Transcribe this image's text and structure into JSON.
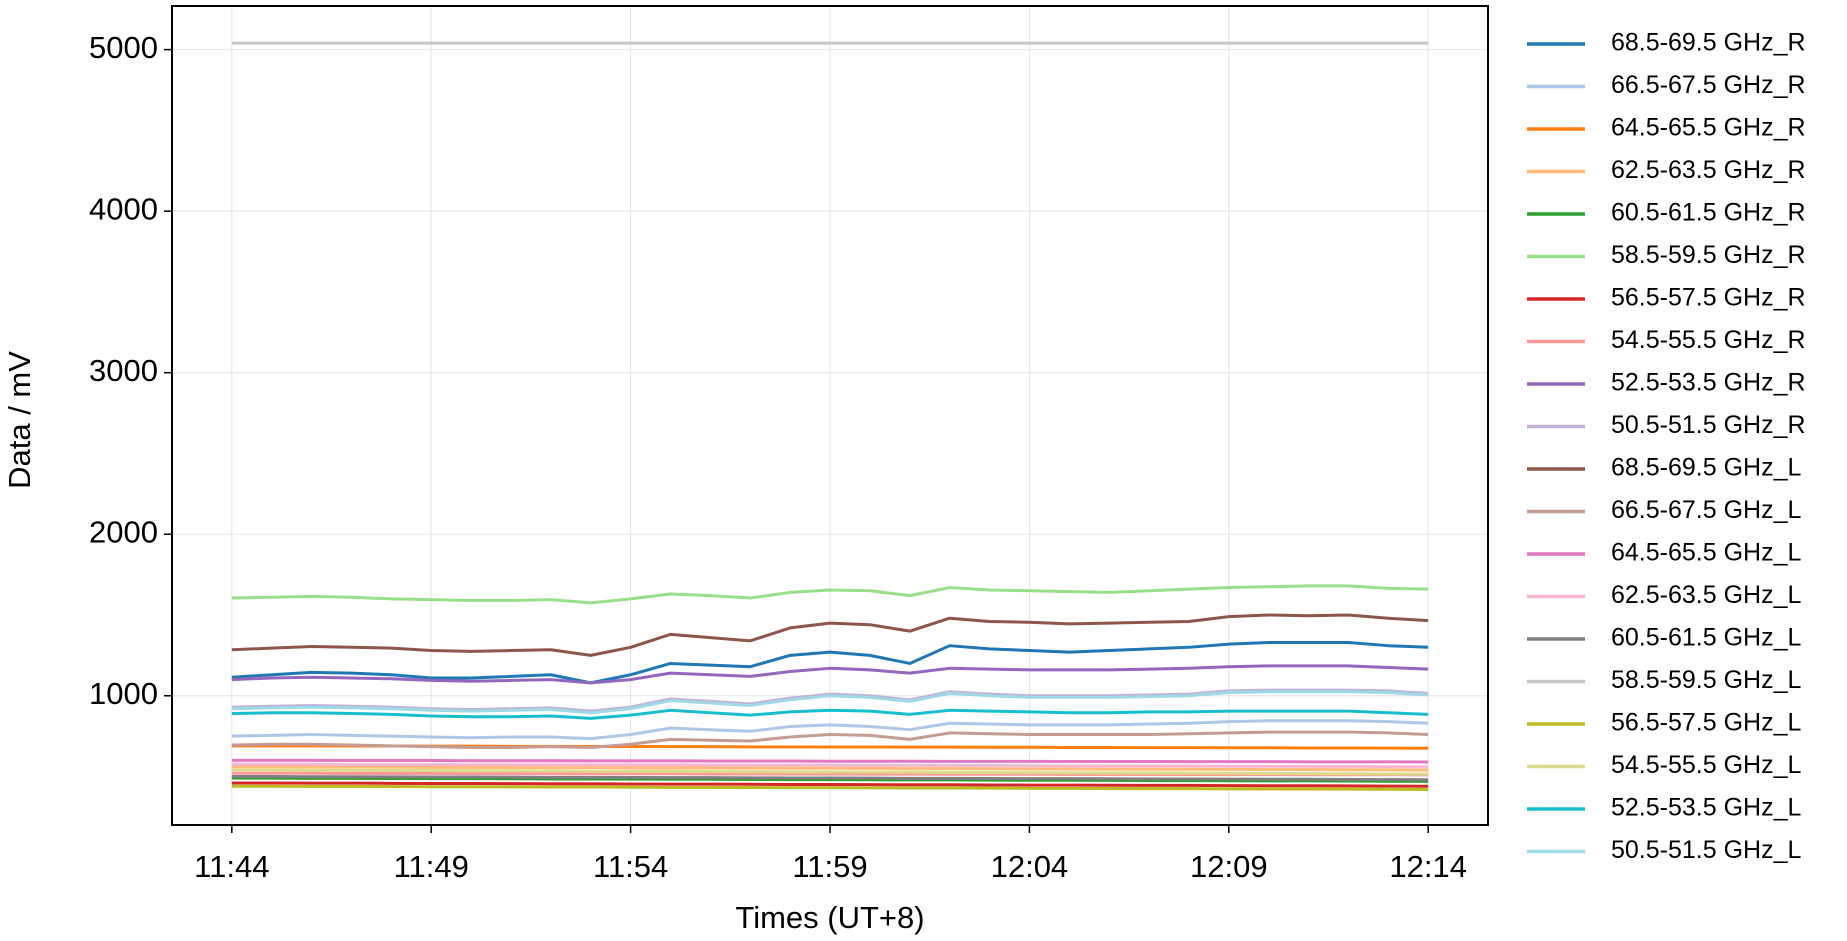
{
  "chart_data": {
    "type": "line",
    "x_label": "Times (UT+8)",
    "y_label": "Data / mV",
    "x": [
      "11:44",
      null,
      null,
      null,
      null,
      "11:49",
      null,
      null,
      null,
      null,
      "11:54",
      null,
      null,
      null,
      null,
      "11:59",
      null,
      null,
      null,
      null,
      "12:04",
      null,
      null,
      null,
      null,
      "12:09",
      null,
      null,
      null,
      null,
      "12:14"
    ],
    "ylim": [
      200,
      5270
    ],
    "yticks": [
      1000,
      2000,
      3000,
      4000,
      5000
    ],
    "grid": true,
    "legend": "outside right",
    "series": [
      {
        "name": "68.5-69.5 GHz_R",
        "color": "#1f77b4",
        "values": [
          1115,
          1130,
          1145,
          1140,
          1130,
          1110,
          1110,
          1120,
          1130,
          1080,
          1130,
          1200,
          1190,
          1180,
          1250,
          1270,
          1250,
          1200,
          1310,
          1290,
          1280,
          1270,
          1280,
          1290,
          1300,
          1320,
          1330,
          1330,
          1330,
          1310,
          1300
        ]
      },
      {
        "name": "66.5-67.5 GHz_R",
        "color": "#aec7e8",
        "values": [
          750,
          755,
          760,
          755,
          750,
          745,
          740,
          745,
          745,
          735,
          760,
          800,
          790,
          780,
          810,
          820,
          810,
          790,
          830,
          825,
          820,
          820,
          820,
          825,
          830,
          840,
          845,
          845,
          845,
          840,
          830
        ]
      },
      {
        "name": "64.5-65.5 GHz_R",
        "color": "#ff7f0e",
        "values": [
          690,
          690,
          690,
          689,
          689,
          688,
          688,
          687,
          687,
          686,
          686,
          685,
          685,
          684,
          684,
          683,
          683,
          682,
          682,
          681,
          681,
          680,
          680,
          679,
          679,
          678,
          678,
          677,
          677,
          676,
          675
        ]
      },
      {
        "name": "62.5-63.5 GHz_R",
        "color": "#ffbb78",
        "values": [
          560,
          560,
          559,
          559,
          558,
          557,
          557,
          556,
          555,
          555,
          554,
          553,
          553,
          552,
          551,
          551,
          550,
          549,
          549,
          548,
          547,
          547,
          546,
          545,
          545,
          544,
          543,
          543,
          542,
          541,
          540
        ]
      },
      {
        "name": "60.5-61.5 GHz_R",
        "color": "#2ca02c",
        "values": [
          490,
          490,
          489,
          489,
          488,
          487,
          487,
          486,
          485,
          485,
          484,
          483,
          483,
          482,
          481,
          481,
          480,
          479,
          479,
          478,
          477,
          477,
          476,
          475,
          475,
          474,
          473,
          473,
          472,
          471,
          470
        ]
      },
      {
        "name": "58.5-59.5 GHz_R",
        "color": "#98df8a",
        "values": [
          1605,
          1610,
          1615,
          1610,
          1600,
          1595,
          1590,
          1590,
          1595,
          1575,
          1600,
          1630,
          1620,
          1605,
          1640,
          1655,
          1650,
          1620,
          1670,
          1655,
          1650,
          1645,
          1640,
          1650,
          1660,
          1670,
          1675,
          1680,
          1680,
          1665,
          1660
        ]
      },
      {
        "name": "56.5-57.5 GHz_R",
        "color": "#d62728",
        "values": [
          460,
          460,
          459,
          459,
          458,
          457,
          457,
          456,
          455,
          455,
          454,
          453,
          453,
          452,
          451,
          451,
          450,
          449,
          449,
          448,
          447,
          447,
          446,
          445,
          445,
          444,
          443,
          443,
          442,
          441,
          440
        ]
      },
      {
        "name": "54.5-55.5 GHz_R",
        "color": "#ff9896",
        "values": [
          520,
          520,
          520,
          519,
          519,
          519,
          518,
          518,
          518,
          517,
          517,
          517,
          516,
          516,
          516,
          515,
          515,
          515,
          514,
          514,
          514,
          513,
          513,
          513,
          512,
          512,
          512,
          511,
          511,
          511,
          510
        ]
      },
      {
        "name": "52.5-53.5 GHz_R",
        "color": "#9467bd",
        "values": [
          1100,
          1110,
          1115,
          1110,
          1105,
          1095,
          1090,
          1095,
          1100,
          1080,
          1100,
          1140,
          1130,
          1120,
          1150,
          1170,
          1160,
          1140,
          1170,
          1165,
          1160,
          1160,
          1160,
          1165,
          1170,
          1180,
          1185,
          1185,
          1185,
          1175,
          1165
        ]
      },
      {
        "name": "50.5-51.5 GHz_R",
        "color": "#c5b0d5",
        "values": [
          930,
          935,
          940,
          935,
          930,
          920,
          915,
          920,
          925,
          905,
          930,
          980,
          965,
          950,
          985,
          1010,
          1000,
          975,
          1025,
          1010,
          1000,
          1000,
          1000,
          1005,
          1010,
          1030,
          1035,
          1035,
          1035,
          1030,
          1015
        ]
      },
      {
        "name": "68.5-69.5 GHz_L",
        "color": "#8c564b",
        "values": [
          1285,
          1295,
          1305,
          1300,
          1295,
          1280,
          1275,
          1280,
          1285,
          1250,
          1300,
          1380,
          1360,
          1340,
          1420,
          1450,
          1440,
          1400,
          1480,
          1460,
          1455,
          1445,
          1450,
          1455,
          1460,
          1490,
          1500,
          1495,
          1500,
          1480,
          1465
        ]
      },
      {
        "name": "66.5-67.5 GHz_L",
        "color": "#c49c94",
        "values": [
          695,
          700,
          700,
          695,
          690,
          685,
          680,
          680,
          685,
          680,
          700,
          730,
          725,
          720,
          745,
          760,
          755,
          730,
          770,
          765,
          760,
          760,
          760,
          760,
          765,
          770,
          775,
          775,
          775,
          770,
          760
        ]
      },
      {
        "name": "64.5-65.5 GHz_L",
        "color": "#e377c2",
        "values": [
          600,
          600,
          600,
          599,
          599,
          599,
          598,
          598,
          598,
          597,
          597,
          597,
          596,
          596,
          596,
          595,
          595,
          595,
          594,
          594,
          594,
          593,
          593,
          593,
          592,
          592,
          592,
          591,
          591,
          591,
          590
        ]
      },
      {
        "name": "62.5-63.5 GHz_L",
        "color": "#f7b6d2",
        "values": [
          575,
          575,
          575,
          574,
          574,
          574,
          573,
          573,
          573,
          572,
          572,
          572,
          571,
          571,
          571,
          570,
          569,
          569,
          568,
          568,
          567,
          566,
          566,
          565,
          565,
          564,
          563,
          563,
          562,
          561,
          560
        ]
      },
      {
        "name": "60.5-61.5 GHz_L",
        "color": "#7f7f7f",
        "values": [
          500,
          500,
          499,
          499,
          498,
          497,
          497,
          496,
          495,
          495,
          494,
          493,
          493,
          492,
          491,
          491,
          490,
          489,
          489,
          488,
          487,
          487,
          486,
          485,
          485,
          484,
          483,
          483,
          482,
          481,
          480
        ]
      },
      {
        "name": "58.5-59.5 GHz_L",
        "color": "#c7c7c7",
        "values": [
          5040,
          5040,
          5040,
          5040,
          5040,
          5040,
          5040,
          5040,
          5040,
          5040,
          5040,
          5040,
          5040,
          5040,
          5040,
          5040,
          5040,
          5040,
          5040,
          5040,
          5040,
          5040,
          5040,
          5040,
          5040,
          5040,
          5040,
          5040,
          5040,
          5040,
          5040
        ]
      },
      {
        "name": "56.5-57.5 GHz_L",
        "color": "#bcbd22",
        "values": [
          440,
          440,
          439,
          439,
          438,
          437,
          437,
          436,
          435,
          435,
          434,
          433,
          433,
          432,
          431,
          431,
          430,
          429,
          429,
          428,
          427,
          427,
          426,
          425,
          425,
          424,
          423,
          423,
          422,
          421,
          420
        ]
      },
      {
        "name": "54.5-55.5 GHz_L",
        "color": "#dbdb8d",
        "values": [
          540,
          540,
          539,
          538,
          537,
          537,
          536,
          535,
          534,
          533,
          532,
          532,
          531,
          530,
          529,
          528,
          527,
          527,
          526,
          525,
          524,
          523,
          522,
          522,
          521,
          520,
          519,
          518,
          517,
          516,
          515
        ]
      },
      {
        "name": "52.5-53.5 GHz_L",
        "color": "#17becf",
        "values": [
          890,
          895,
          895,
          890,
          885,
          875,
          870,
          870,
          875,
          860,
          880,
          910,
          895,
          880,
          900,
          910,
          905,
          885,
          910,
          905,
          900,
          895,
          895,
          900,
          900,
          905,
          905,
          905,
          905,
          895,
          885
        ]
      },
      {
        "name": "50.5-51.5 GHz_L",
        "color": "#9edae5",
        "values": [
          920,
          925,
          930,
          925,
          920,
          910,
          905,
          910,
          915,
          895,
          920,
          970,
          955,
          940,
          975,
          1000,
          990,
          965,
          1015,
          1000,
          990,
          990,
          990,
          995,
          1000,
          1020,
          1025,
          1025,
          1025,
          1020,
          1005
        ]
      }
    ]
  }
}
